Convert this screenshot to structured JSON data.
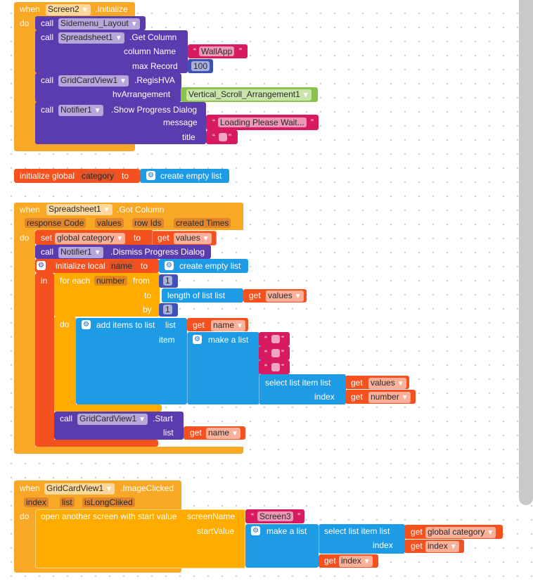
{
  "screen_init": {
    "when": "when",
    "component": "Screen2",
    "event": ".Initialize",
    "do": "do",
    "call": "call",
    "sidemenu": "Sidemenu_Layout",
    "get_column": {
      "component": "Spreadsheet1",
      "method": ".Get Column",
      "column_name_label": "column Name",
      "column_name": "WallApp",
      "max_record_label": "max Record",
      "max_record": "100"
    },
    "regis": {
      "component": "GridCardView1",
      "method": ".RegisHVA",
      "hv_label": "hvArrangement",
      "hv_value": "Vertical_Scroll_Arrangement1"
    },
    "progress": {
      "component": "Notifier1",
      "method": ".Show Progress Dialog",
      "message_label": "message",
      "message": "Loading Please Wait...",
      "title_label": "title",
      "title": ""
    }
  },
  "global_init": {
    "label": "initialize global",
    "name": "category",
    "to": "to",
    "value": "create empty list"
  },
  "got_column": {
    "when": "when",
    "component": "Spreadsheet1",
    "event": ".Got Column",
    "params": [
      "response Code",
      "values",
      "row Ids",
      "created Times"
    ],
    "do": "do",
    "in": "in",
    "set": "set",
    "set_var": "global category",
    "to": "to",
    "get": "get",
    "get_values": "values",
    "call": "call",
    "dismiss_component": "Notifier1",
    "dismiss_method": ".Dismiss Progress Dialog",
    "init_local": "initialize local",
    "local_name": "name",
    "create_empty": "create empty list",
    "for_each": "for each",
    "loop_var": "number",
    "from": "from",
    "from_value": "1",
    "to_label": "to",
    "length_of_list": "length of list  list",
    "by": "by",
    "by_value": "1",
    "add_items": "add items to list",
    "list_label": "list",
    "item_label": "item",
    "make_list": "make a list",
    "select_list_item": "select list item  list",
    "index_label": "index",
    "get_number": "number",
    "start_component": "GridCardView1",
    "start_method": ".Start",
    "quote_open": "“",
    "quote_close": "”"
  },
  "image_clicked": {
    "when": "when",
    "component": "GridCardView1",
    "event": ".ImageClicked",
    "params": [
      "index",
      "list",
      "isLongCliked"
    ],
    "do": "do",
    "open_screen": "open another screen with start value",
    "screen_name_label": "screenName",
    "screen_name": "Screen3",
    "start_value_label": "startValue",
    "make_list": "make a list",
    "select_list_item": "select list item  list",
    "index_label": "index",
    "get": "get",
    "get_global": "global category",
    "get_index": "index"
  }
}
